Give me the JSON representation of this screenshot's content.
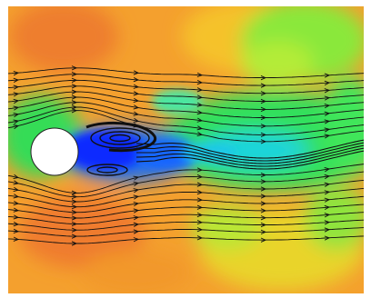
{
  "figure": {
    "kind": "flow-around-cylinder-visualization",
    "colormap": [
      "#0a1cff",
      "#1f6cff",
      "#1fd0e6",
      "#3ce84a",
      "#a8f03a",
      "#f7c81e",
      "#f5a12a",
      "#ef7a2e"
    ],
    "background_color": "#ffffff",
    "obstacle": {
      "shape": "circle",
      "fill": "#ffffff"
    },
    "streamline_color": "#101010",
    "arrow_direction": "right"
  }
}
